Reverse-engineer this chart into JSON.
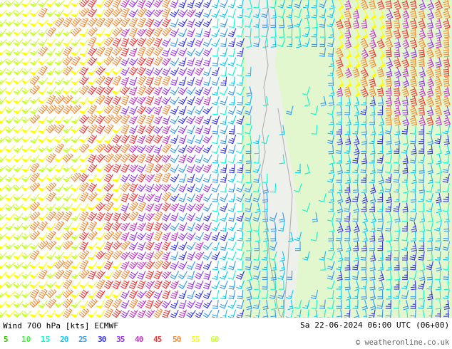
{
  "title_left": "Wind 700 hPa [kts] ECMWF",
  "title_right": "Sa 22-06-2024 06:00 UTC (06+00)",
  "copyright": "© weatheronline.co.uk",
  "legend_values": [
    5,
    10,
    15,
    20,
    25,
    30,
    35,
    40,
    45,
    50,
    55,
    60
  ],
  "legend_colors": [
    "#33cc00",
    "#33ff33",
    "#00ffcc",
    "#00ccff",
    "#3399ff",
    "#3333ff",
    "#9933ff",
    "#cc33cc",
    "#ff3333",
    "#ff8833",
    "#ffff00",
    "#ccff33"
  ],
  "bg_color": "#ffffff",
  "figsize": [
    6.34,
    4.9
  ],
  "dpi": 100,
  "barb_color_thresholds": [
    5,
    10,
    15,
    20,
    25,
    30,
    35,
    40,
    45,
    50,
    55,
    60
  ],
  "speed_color_map": {
    "5": "#33cc00",
    "10": "#33ff33",
    "15": "#00ffcc",
    "20": "#00ccff",
    "25": "#3399ff",
    "30": "#3333ff",
    "35": "#9933ff",
    "40": "#cc33cc",
    "45": "#ff3333",
    "50": "#ff8833",
    "55": "#ffff00",
    "60": "#ccff33"
  }
}
